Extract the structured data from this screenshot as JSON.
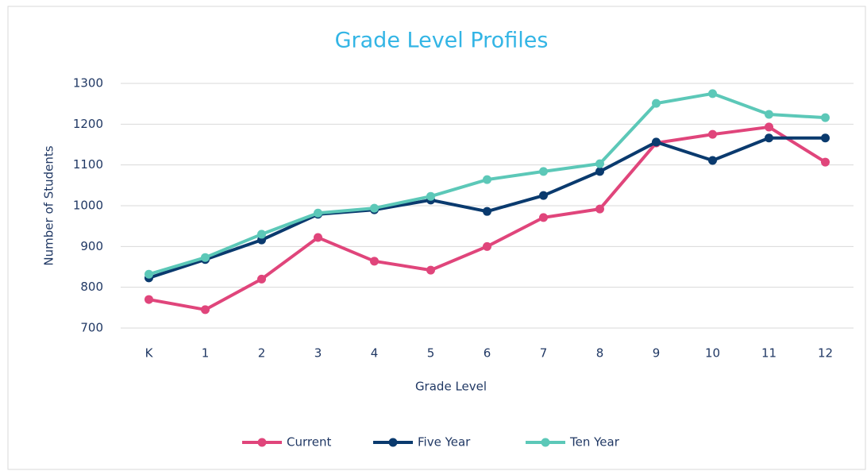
{
  "chart_data": {
    "type": "line",
    "title": "Grade Level Profiles",
    "x_label": "Grade Level",
    "y_label": "Number  of Students",
    "categories": [
      "K",
      "1",
      "2",
      "3",
      "4",
      "5",
      "6",
      "7",
      "8",
      "9",
      "10",
      "11",
      "12"
    ],
    "series": [
      {
        "name": "Current",
        "color": "#e0457b",
        "values": [
          770,
          745,
          820,
          922,
          864,
          842,
          900,
          971,
          992,
          1154,
          1175,
          1193,
          1107
        ]
      },
      {
        "name": "Five Year",
        "color": "#0a3a6e",
        "values": [
          823,
          868,
          916,
          979,
          990,
          1014,
          986,
          1025,
          1084,
          1156,
          1111,
          1166,
          1166
        ]
      },
      {
        "name": "Ten Year",
        "color": "#5cc8b8",
        "values": [
          832,
          873,
          930,
          982,
          994,
          1023,
          1064,
          1084,
          1103,
          1251,
          1275,
          1224,
          1216
        ]
      }
    ],
    "ylim": [
      700,
      1300
    ],
    "yticks": [
      700,
      800,
      900,
      1000,
      1100,
      1200,
      1300
    ],
    "grid": true,
    "legend": "bottom"
  }
}
